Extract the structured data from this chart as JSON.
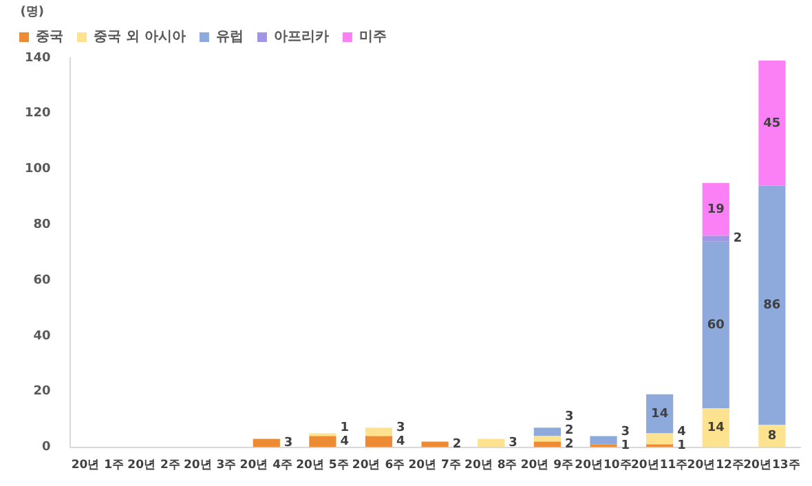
{
  "chart_data": {
    "type": "bar",
    "stacked": true,
    "ylabel": "(명)",
    "categories": [
      "20년 1주",
      "20년 2주",
      "20년 3주",
      "20년 4주",
      "20년 5주",
      "20년 6주",
      "20년 7주",
      "20년 8주",
      "20년 9주",
      "20년10주",
      "20년11주",
      "20년12주",
      "20년13주"
    ],
    "series": [
      {
        "name": "중국",
        "color": "#ed8b35",
        "values": [
          0,
          0,
          0,
          3,
          4,
          4,
          2,
          0,
          2,
          1,
          1,
          0,
          0
        ],
        "value_labels": [
          null,
          null,
          null,
          "3",
          "4",
          "4",
          "2",
          null,
          "2",
          "1",
          "1",
          null,
          null
        ]
      },
      {
        "name": "중국 외 아시아",
        "color": "#fde28f",
        "values": [
          0,
          0,
          0,
          0,
          1,
          3,
          0,
          3,
          2,
          0,
          4,
          14,
          8
        ],
        "value_labels": [
          null,
          null,
          null,
          null,
          "1",
          "3",
          null,
          "3",
          "2",
          null,
          "4",
          "14",
          "8"
        ]
      },
      {
        "name": "유럽",
        "color": "#8eaadc",
        "values": [
          0,
          0,
          0,
          0,
          0,
          0,
          0,
          0,
          3,
          3,
          14,
          60,
          86
        ],
        "value_labels": [
          null,
          null,
          null,
          null,
          null,
          null,
          null,
          null,
          "3",
          "3",
          "14",
          "60",
          "86"
        ]
      },
      {
        "name": "아프리카",
        "color": "#a395e6",
        "values": [
          0,
          0,
          0,
          0,
          0,
          0,
          0,
          0,
          0,
          0,
          0,
          2,
          0
        ],
        "value_labels": [
          null,
          null,
          null,
          null,
          null,
          null,
          null,
          null,
          null,
          null,
          null,
          "2",
          null
        ]
      },
      {
        "name": "미주",
        "color": "#fb80f5",
        "values": [
          0,
          0,
          0,
          0,
          0,
          0,
          0,
          0,
          0,
          0,
          0,
          19,
          45
        ],
        "value_labels": [
          null,
          null,
          null,
          null,
          null,
          null,
          null,
          null,
          null,
          null,
          null,
          "19",
          "45"
        ]
      }
    ],
    "ylim": [
      0,
      140
    ],
    "yticks": [
      0,
      20,
      40,
      60,
      80,
      100,
      120,
      140
    ],
    "grid": false,
    "legend": "top left"
  }
}
